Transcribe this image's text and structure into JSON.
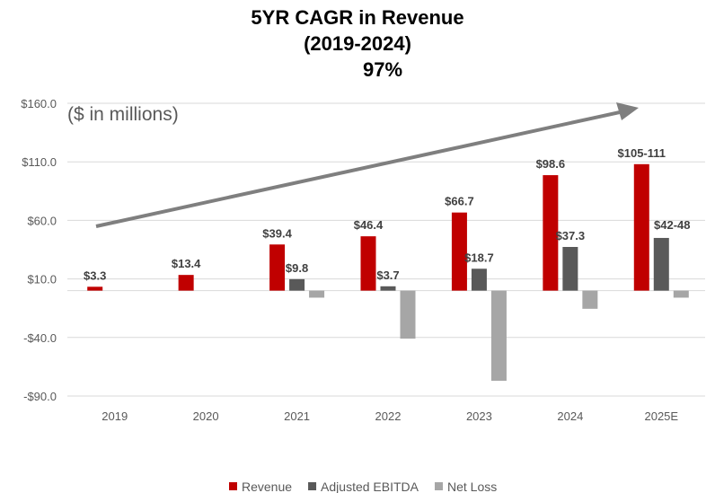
{
  "chart_data": {
    "type": "bar",
    "title": [
      "5YR CAGR in Revenue",
      "(2019-2024)",
      "97%"
    ],
    "annotation": "($ in millions)",
    "categories": [
      "2019",
      "2020",
      "2021",
      "2022",
      "2023",
      "2024",
      "2025E"
    ],
    "ylim": [
      -90,
      160
    ],
    "yticks": [
      160,
      110,
      60,
      10,
      -40,
      -90
    ],
    "ytick_labels": [
      "$160.0",
      "$110.0",
      "$60.0",
      "$10.0",
      "-$40.0",
      "-$90.0"
    ],
    "grid": true,
    "legend_position": "bottom",
    "series": [
      {
        "name": "Revenue",
        "color": "#C00000",
        "values": [
          3.3,
          13.4,
          39.4,
          46.4,
          66.7,
          98.6,
          108
        ],
        "labels": [
          "$3.3",
          "$13.4",
          "$39.4",
          "$46.4",
          "$66.7",
          "$98.6",
          "$105-111"
        ]
      },
      {
        "name": "Adjusted EBITDA",
        "color": "#595959",
        "values": [
          null,
          null,
          9.8,
          3.7,
          18.7,
          37.3,
          45
        ],
        "labels": [
          null,
          null,
          "$9.8",
          "$3.7",
          "$18.7",
          "$37.3",
          "$42-48"
        ]
      },
      {
        "name": "Net Loss",
        "color": "#A6A6A6",
        "values": [
          null,
          null,
          -6,
          -41,
          -77,
          -15.5,
          -6
        ],
        "labels": [
          null,
          null,
          null,
          null,
          null,
          null,
          null
        ]
      }
    ],
    "trend_arrow_color": "#7F7F7F"
  }
}
